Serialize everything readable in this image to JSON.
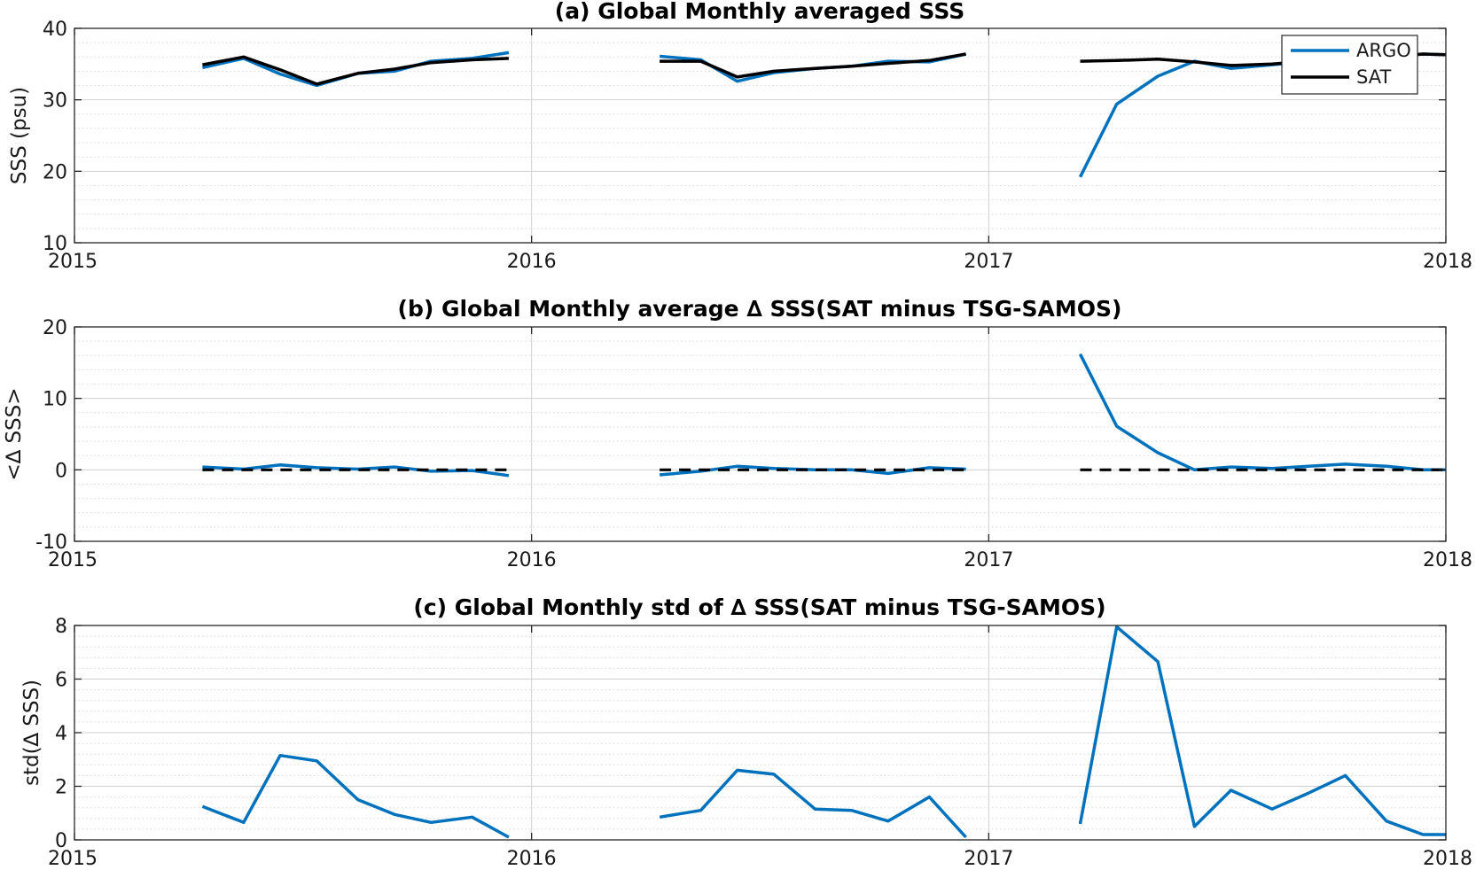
{
  "colors": {
    "argo": "#0072BD",
    "sat": "#000000",
    "zero_line": "#000000",
    "grid_major": "#d0d0d0",
    "grid_minor": "#d8d8d8"
  },
  "legend": {
    "location": "top-right",
    "items": [
      "ARGO",
      "SAT"
    ]
  },
  "chart_data": [
    {
      "type": "line",
      "title": "(a) Global Monthly averaged SSS",
      "xlabel": "",
      "ylabel": "SSS (psu)",
      "xlim": [
        2015,
        2018
      ],
      "ylim": [
        10,
        40
      ],
      "xticks": [
        2015,
        2016,
        2017,
        2018
      ],
      "xticklabels": [
        "2015",
        "2016",
        "2017",
        "2018"
      ],
      "yticks": [
        10,
        20,
        30,
        40
      ],
      "yticklabels": [
        "10",
        "20",
        "30",
        "40"
      ],
      "grid": true,
      "minor_grid": true,
      "legend": "top-right",
      "series": [
        {
          "name": "ARGO",
          "segments": [
            {
              "x": [
                2015.28,
                2015.37,
                2015.45,
                2015.53,
                2015.62,
                2015.7,
                2015.78,
                2015.87,
                2015.95
              ],
              "y": [
                34.5,
                35.8,
                33.6,
                32.0,
                33.7,
                34.0,
                35.4,
                35.8,
                36.6
              ]
            },
            {
              "x": [
                2016.28,
                2016.37,
                2016.45,
                2016.53,
                2016.62,
                2016.7,
                2016.78,
                2016.87,
                2016.95
              ],
              "y": [
                36.1,
                35.6,
                32.6,
                33.8,
                34.4,
                34.7,
                35.4,
                35.3,
                36.4
              ]
            },
            {
              "x": [
                2017.2,
                2017.28,
                2017.37,
                2017.45,
                2017.53,
                2017.62,
                2017.7,
                2017.78,
                2017.87,
                2017.95,
                2018.0
              ],
              "y": [
                19.2,
                29.4,
                33.3,
                35.4,
                34.4,
                34.9,
                35.4,
                35.8,
                36.0,
                36.4,
                36.3
              ]
            }
          ]
        },
        {
          "name": "SAT",
          "segments": [
            {
              "x": [
                2015.28,
                2015.37,
                2015.45,
                2015.53,
                2015.62,
                2015.7,
                2015.78,
                2015.87,
                2015.95
              ],
              "y": [
                34.9,
                36.0,
                34.2,
                32.2,
                33.7,
                34.3,
                35.2,
                35.6,
                35.8
              ]
            },
            {
              "x": [
                2016.28,
                2016.37,
                2016.45,
                2016.53,
                2016.62,
                2016.7,
                2016.78,
                2016.87,
                2016.95
              ],
              "y": [
                35.4,
                35.4,
                33.2,
                34.0,
                34.4,
                34.7,
                35.1,
                35.5,
                36.4
              ]
            },
            {
              "x": [
                2017.2,
                2017.28,
                2017.37,
                2017.45,
                2017.53,
                2017.62,
                2017.7,
                2017.78,
                2017.87,
                2017.95,
                2018.0
              ],
              "y": [
                35.4,
                35.5,
                35.7,
                35.3,
                34.8,
                35.0,
                35.4,
                35.8,
                36.0,
                36.4,
                36.3
              ]
            }
          ]
        }
      ]
    },
    {
      "type": "line",
      "title": "(b) Global Monthly average ∆ SSS(SAT minus TSG-SAMOS)",
      "xlabel": "",
      "ylabel": "<∆ SSS>",
      "xlim": [
        2015,
        2018
      ],
      "ylim": [
        -10,
        20
      ],
      "xticks": [
        2015,
        2016,
        2017,
        2018
      ],
      "xticklabels": [
        "2015",
        "2016",
        "2017",
        "2018"
      ],
      "yticks": [
        -10,
        0,
        10,
        20
      ],
      "yticklabels": [
        "-10",
        "0",
        "10",
        "20"
      ],
      "grid": true,
      "minor_grid": true,
      "series": [
        {
          "name": "",
          "segments": [
            {
              "x": [
                2015.28,
                2015.37,
                2015.45,
                2015.53,
                2015.62,
                2015.7,
                2015.78,
                2015.87,
                2015.95
              ],
              "y": [
                0.4,
                0.1,
                0.7,
                0.3,
                0.1,
                0.4,
                -0.2,
                -0.1,
                -0.8
              ]
            },
            {
              "x": [
                2016.28,
                2016.37,
                2016.45,
                2016.53,
                2016.62,
                2016.7,
                2016.78,
                2016.87,
                2016.95
              ],
              "y": [
                -0.7,
                -0.2,
                0.5,
                0.2,
                0.0,
                0.0,
                -0.5,
                0.3,
                0.1
              ]
            },
            {
              "x": [
                2017.2,
                2017.28,
                2017.37,
                2017.45,
                2017.53,
                2017.62,
                2017.7,
                2017.78,
                2017.87,
                2017.95,
                2018.0
              ],
              "y": [
                16.2,
                6.1,
                2.4,
                0.0,
                0.4,
                0.2,
                0.5,
                0.8,
                0.5,
                0.0,
                0.0
              ]
            }
          ]
        },
        {
          "name": "",
          "style": "dashed",
          "segments": [
            {
              "x": [
                2015.28,
                2015.95
              ],
              "y": [
                0,
                0
              ]
            },
            {
              "x": [
                2016.28,
                2016.95
              ],
              "y": [
                0,
                0
              ]
            },
            {
              "x": [
                2017.2,
                2018.0
              ],
              "y": [
                0,
                0
              ]
            }
          ]
        }
      ]
    },
    {
      "type": "line",
      "title": "(c) Global Monthly std of ∆ SSS(SAT minus TSG-SAMOS)",
      "xlabel": "",
      "ylabel": "std(∆ SSS)",
      "xlim": [
        2015,
        2018
      ],
      "ylim": [
        0,
        8
      ],
      "xticks": [
        2015,
        2016,
        2017,
        2018
      ],
      "xticklabels": [
        "2015",
        "2016",
        "2017",
        "2018"
      ],
      "yticks": [
        0,
        2,
        4,
        6,
        8
      ],
      "yticklabels": [
        "0",
        "2",
        "4",
        "6",
        "8"
      ],
      "grid": true,
      "minor_grid": true,
      "series": [
        {
          "name": "",
          "segments": [
            {
              "x": [
                2015.28,
                2015.37,
                2015.45,
                2015.53,
                2015.62,
                2015.7,
                2015.78,
                2015.87,
                2015.95
              ],
              "y": [
                1.25,
                0.65,
                3.15,
                2.95,
                1.5,
                0.95,
                0.65,
                0.85,
                0.1
              ]
            },
            {
              "x": [
                2016.28,
                2016.37,
                2016.45,
                2016.53,
                2016.62,
                2016.7,
                2016.78,
                2016.87,
                2016.95
              ],
              "y": [
                0.85,
                1.1,
                2.6,
                2.45,
                1.15,
                1.1,
                0.7,
                1.6,
                0.1
              ]
            },
            {
              "x": [
                2017.2,
                2017.28,
                2017.37,
                2017.45,
                2017.53,
                2017.62,
                2017.7,
                2017.78,
                2017.87,
                2017.95,
                2018.0
              ],
              "y": [
                0.6,
                7.95,
                6.65,
                0.5,
                1.85,
                1.15,
                1.75,
                2.4,
                0.7,
                0.2,
                0.2
              ]
            }
          ]
        }
      ]
    }
  ]
}
